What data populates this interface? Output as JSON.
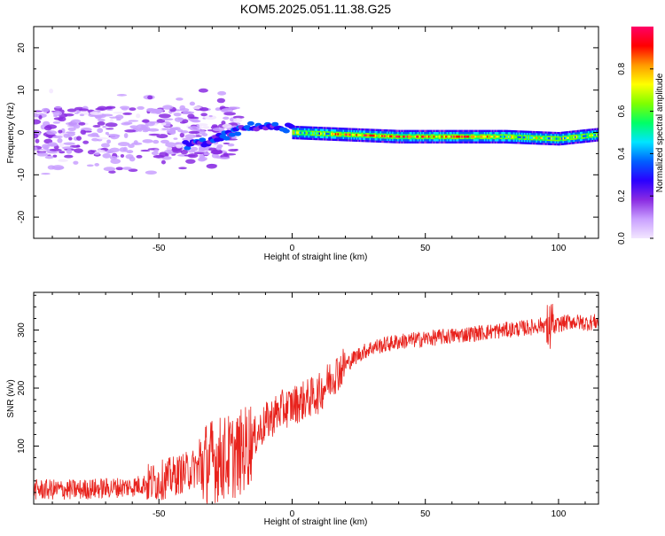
{
  "page": {
    "title": "KOM5.2025.051.11.38.G25"
  },
  "chart_data": [
    {
      "type": "heatmap",
      "title": "KOM5.2025.051.11.38.G25",
      "xlabel": "Height of straight line (km)",
      "ylabel": "Frequency (Hz)",
      "xlim": [
        -97,
        115
      ],
      "ylim": [
        -25,
        25
      ],
      "x_ticks": [
        -50,
        0,
        50,
        100
      ],
      "y_ticks": [
        -20,
        -10,
        0,
        10,
        20
      ],
      "grid": false,
      "colorbar": {
        "label": "Normalized spectral amplitude",
        "range": [
          0,
          1
        ],
        "ticks": [
          0.0,
          0.2,
          0.4,
          0.6,
          0.8
        ],
        "colors": [
          "#f3e7ff",
          "#c9a0ff",
          "#8a2be2",
          "#2a00ff",
          "#0060ff",
          "#00e5ff",
          "#00ff66",
          "#7fff00",
          "#ffff00",
          "#ff9900",
          "#ff0000",
          "#ff0066"
        ]
      },
      "features": {
        "scattered_noise": {
          "x_range": [
            -97,
            -20
          ],
          "freq_range": [
            -10,
            10
          ],
          "amplitude": 0.1
        },
        "descending_trace": {
          "x": [
            -40,
            -30,
            -22,
            -15,
            0
          ],
          "freq": [
            -3,
            -2,
            0,
            1.5,
            1
          ]
        },
        "steady_trace": {
          "x": [
            0,
            20,
            40,
            60,
            80,
            100,
            115
          ],
          "freq": [
            0,
            -0.5,
            -1,
            -1,
            -1,
            -1.5,
            -0.5
          ],
          "peak_amplitude": 1.0
        }
      }
    },
    {
      "type": "line",
      "xlabel": "Height of straight line (km)",
      "ylabel": "SNR (v/v)",
      "xlim": [
        -97,
        115
      ],
      "ylim": [
        0,
        365
      ],
      "x_ticks": [
        -50,
        0,
        50,
        100
      ],
      "y_ticks": [
        100,
        200,
        300
      ],
      "grid": false,
      "color": "#e8221c",
      "x": [
        -97,
        -80,
        -60,
        -50,
        -40,
        -30,
        -25,
        -20,
        -15,
        -10,
        -5,
        0,
        5,
        10,
        15,
        20,
        25,
        30,
        40,
        50,
        60,
        70,
        80,
        90,
        95,
        97,
        100,
        105,
        110,
        115
      ],
      "y": [
        25,
        25,
        30,
        40,
        55,
        75,
        80,
        85,
        110,
        140,
        160,
        170,
        180,
        190,
        220,
        240,
        258,
        270,
        280,
        285,
        290,
        295,
        300,
        305,
        310,
        300,
        310,
        315,
        312,
        315
      ]
    }
  ]
}
